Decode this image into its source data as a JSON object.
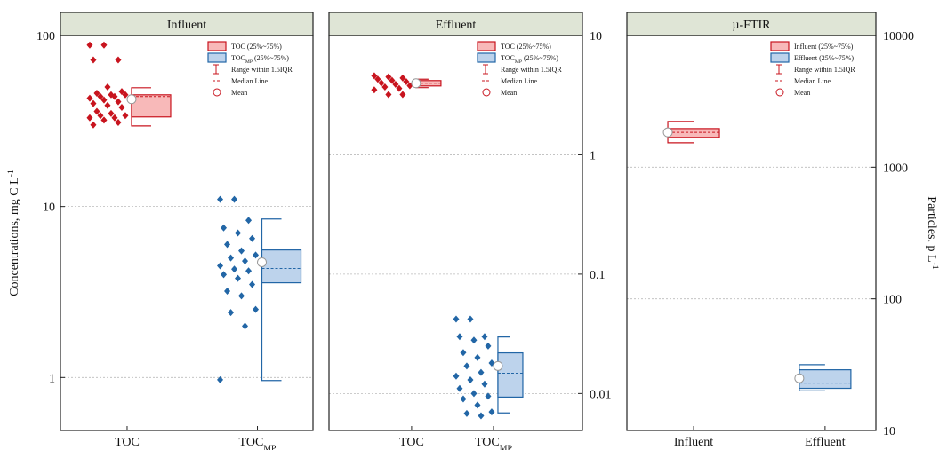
{
  "chart_data": [
    {
      "type": "box",
      "title": "Influent",
      "y_label": {
        "text": "Concentrations, mg C L",
        "sup": "-1"
      },
      "log_y": true,
      "ylim": [
        0.49,
        100
      ],
      "yticks": [
        1,
        10,
        100
      ],
      "yaxis_side": "left",
      "grid": true,
      "categories": [
        {
          "text": "TOC"
        },
        {
          "text": "TOC",
          "sub": "MP"
        }
      ],
      "boxes": [
        {
          "color": "#c8141e",
          "fill": "#f8b9b9",
          "q1": 33.4,
          "q3": 45,
          "median": 44,
          "mean": 42.4,
          "whisker_low": 29.6,
          "whisker_high": 49.5,
          "points": [
            88,
            88,
            72,
            72,
            50,
            47,
            46,
            45,
            45,
            44,
            44,
            43,
            42,
            41,
            40,
            39,
            38,
            36,
            35,
            34,
            34,
            33,
            33,
            32,
            31,
            30
          ]
        },
        {
          "color": "#2266a6",
          "fill": "#bdd3ec",
          "q1": 3.58,
          "q3": 5.57,
          "median": 4.34,
          "mean": 4.72,
          "whisker_low": 0.96,
          "whisker_high": 8.45,
          "points": [
            11,
            11,
            8.3,
            7.5,
            7,
            6.5,
            6,
            5.5,
            5.2,
            5,
            4.8,
            4.5,
            4.3,
            4.2,
            4,
            3.8,
            3.5,
            3.2,
            3,
            2.5,
            2.4,
            2,
            0.97
          ]
        }
      ],
      "legend": {
        "position": "upper right",
        "entries": [
          {
            "symbol": "box",
            "text": "TOC",
            "tail": " (25%~75%)"
          },
          {
            "symbol": "box",
            "text": "TOC",
            "sub": "MP",
            "tail": " (25%~75%)"
          },
          {
            "symbol": "range",
            "text": "Range within 1.5IQR"
          },
          {
            "symbol": "median",
            "text": "Median Line"
          },
          {
            "symbol": "mean",
            "text": "Mean"
          }
        ]
      }
    },
    {
      "type": "box",
      "title": "Effluent",
      "log_y": true,
      "ylim": [
        0.0049,
        10
      ],
      "yticks": [
        0.01,
        0.1,
        1,
        10
      ],
      "yaxis_side": "right",
      "grid": true,
      "categories": [
        {
          "text": "TOC"
        },
        {
          "text": "TOC",
          "sub": "MP"
        }
      ],
      "boxes": [
        {
          "color": "#c8141e",
          "fill": "#f8b9b9",
          "q1": 3.78,
          "q3": 4.19,
          "median": 3.98,
          "mean": 3.98,
          "whisker_low": 3.66,
          "whisker_high": 4.3,
          "points": [
            4.6,
            4.5,
            4.4,
            4.3,
            4.2,
            4.1,
            4.0,
            3.9,
            3.8,
            3.7,
            3.6,
            3.5,
            3.2,
            3.2
          ]
        },
        {
          "color": "#2266a6",
          "fill": "#bdd3ec",
          "q1": 0.00933,
          "q3": 0.0219,
          "median": 0.0148,
          "mean": 0.017,
          "whisker_low": 0.00687,
          "whisker_high": 0.0298,
          "points": [
            0.042,
            0.042,
            0.03,
            0.03,
            0.028,
            0.025,
            0.022,
            0.02,
            0.018,
            0.017,
            0.015,
            0.014,
            0.013,
            0.012,
            0.011,
            0.01,
            0.0095,
            0.009,
            0.008,
            0.007,
            0.0068,
            0.0065
          ]
        }
      ],
      "legend": {
        "position": "upper right",
        "entries": [
          {
            "symbol": "box",
            "text": "TOC",
            "tail": " (25%~75%)"
          },
          {
            "symbol": "box",
            "text": "TOC",
            "sub": "MP",
            "tail": " (25%~75%)"
          },
          {
            "symbol": "range",
            "text": "Range within 1.5IQR"
          },
          {
            "symbol": "median",
            "text": "Median Line"
          },
          {
            "symbol": "mean",
            "text": "Mean"
          }
        ]
      }
    },
    {
      "type": "box",
      "title": "µ-FTIR",
      "y_label": {
        "text": "Particles, p L",
        "sup": "-1"
      },
      "log_y": true,
      "ylim": [
        10,
        10000
      ],
      "yticks": [
        10,
        100,
        1000,
        10000
      ],
      "yaxis_side": "right",
      "grid": true,
      "categories": [
        {
          "text": "Influent"
        },
        {
          "text": "Effluent"
        }
      ],
      "boxes": [
        {
          "color": "#c8141e",
          "fill": "#f8b9b9",
          "q1": 1682,
          "q3": 1963,
          "median": 1837,
          "mean": 1837,
          "whisker_low": 1532,
          "whisker_high": 2222
        },
        {
          "color": "#2266a6",
          "fill": "#bdd3ec",
          "q1": 20.9,
          "q3": 28.9,
          "median": 22.9,
          "mean": 24.9,
          "whisker_low": 20,
          "whisker_high": 31.6
        }
      ],
      "legend": {
        "position": "upper right",
        "entries": [
          {
            "symbol": "box",
            "text": "Influent",
            "tail": " (25%~75%)"
          },
          {
            "symbol": "box",
            "text": "Effluent",
            "tail": " (25%~75%)"
          },
          {
            "symbol": "range",
            "text": "Range within 1.5IQR"
          },
          {
            "symbol": "median",
            "text": "Median Line"
          },
          {
            "symbol": "mean",
            "text": "Mean"
          }
        ]
      }
    }
  ]
}
